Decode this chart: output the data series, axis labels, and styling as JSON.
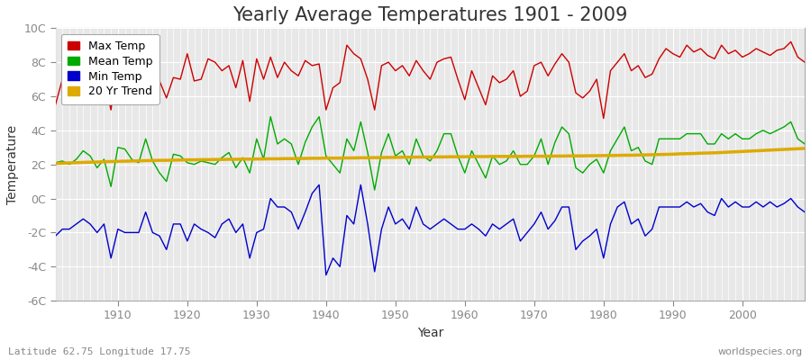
{
  "title": "Yearly Average Temperatures 1901 - 2009",
  "xlabel": "Year",
  "ylabel": "Temperature",
  "footnote_left": "Latitude 62.75 Longitude 17.75",
  "footnote_right": "worldspecies.org",
  "years": [
    1901,
    1902,
    1903,
    1904,
    1905,
    1906,
    1907,
    1908,
    1909,
    1910,
    1911,
    1912,
    1913,
    1914,
    1915,
    1916,
    1917,
    1918,
    1919,
    1920,
    1921,
    1922,
    1923,
    1924,
    1925,
    1926,
    1927,
    1928,
    1929,
    1930,
    1931,
    1932,
    1933,
    1934,
    1935,
    1936,
    1937,
    1938,
    1939,
    1940,
    1941,
    1942,
    1943,
    1944,
    1945,
    1946,
    1947,
    1948,
    1949,
    1950,
    1951,
    1952,
    1953,
    1954,
    1955,
    1956,
    1957,
    1958,
    1959,
    1960,
    1961,
    1962,
    1963,
    1964,
    1965,
    1966,
    1967,
    1968,
    1969,
    1970,
    1971,
    1972,
    1973,
    1974,
    1975,
    1976,
    1977,
    1978,
    1979,
    1980,
    1981,
    1982,
    1983,
    1984,
    1985,
    1986,
    1987,
    1988,
    1989,
    1990,
    1991,
    1992,
    1993,
    1994,
    1995,
    1996,
    1997,
    1998,
    1999,
    2000,
    2001,
    2002,
    2003,
    2004,
    2005,
    2006,
    2007,
    2008,
    2009
  ],
  "max_temp": [
    5.5,
    7.0,
    6.8,
    7.2,
    7.5,
    6.5,
    6.8,
    7.1,
    5.2,
    8.4,
    8.3,
    7.0,
    6.5,
    7.8,
    7.2,
    6.9,
    5.9,
    7.1,
    7.0,
    8.5,
    6.9,
    7.0,
    8.2,
    8.0,
    7.5,
    7.8,
    6.5,
    8.1,
    5.7,
    8.2,
    7.0,
    8.3,
    7.1,
    8.0,
    7.5,
    7.2,
    8.1,
    7.8,
    7.9,
    5.2,
    6.5,
    6.8,
    9.0,
    8.5,
    8.2,
    7.0,
    5.2,
    7.8,
    8.0,
    7.5,
    7.8,
    7.2,
    8.1,
    7.5,
    7.0,
    8.0,
    8.2,
    8.3,
    7.0,
    5.8,
    7.5,
    6.5,
    5.5,
    7.2,
    6.8,
    7.0,
    7.5,
    6.0,
    6.3,
    7.8,
    8.0,
    7.2,
    7.9,
    8.5,
    8.0,
    6.2,
    5.9,
    6.3,
    7.0,
    4.7,
    7.5,
    8.0,
    8.5,
    7.5,
    7.8,
    7.1,
    7.3,
    8.2,
    8.8,
    8.5,
    8.3,
    9.0,
    8.6,
    8.8,
    8.4,
    8.2,
    9.0,
    8.5,
    8.7,
    8.3,
    8.5,
    8.8,
    8.6,
    8.4,
    8.7,
    8.8,
    9.2,
    8.3,
    8.0
  ],
  "mean_temp": [
    2.1,
    2.2,
    2.0,
    2.3,
    2.8,
    2.5,
    1.8,
    2.3,
    0.7,
    3.0,
    2.9,
    2.3,
    2.1,
    3.5,
    2.2,
    1.5,
    1.0,
    2.6,
    2.5,
    2.1,
    2.0,
    2.2,
    2.1,
    2.0,
    2.4,
    2.7,
    1.8,
    2.4,
    1.5,
    3.5,
    2.3,
    4.8,
    3.2,
    3.5,
    3.2,
    2.0,
    3.3,
    4.2,
    4.8,
    2.5,
    2.0,
    1.5,
    3.5,
    2.8,
    4.5,
    2.7,
    0.5,
    2.7,
    3.8,
    2.5,
    2.8,
    2.0,
    3.5,
    2.5,
    2.2,
    2.8,
    3.8,
    3.8,
    2.5,
    1.5,
    2.8,
    2.0,
    1.2,
    2.5,
    2.0,
    2.2,
    2.8,
    2.0,
    2.0,
    2.5,
    3.5,
    2.0,
    3.3,
    4.2,
    3.8,
    1.8,
    1.5,
    2.0,
    2.3,
    1.5,
    2.8,
    3.5,
    4.2,
    2.8,
    3.0,
    2.2,
    2.0,
    3.5,
    3.5,
    3.5,
    3.5,
    3.8,
    3.8,
    3.8,
    3.2,
    3.2,
    3.8,
    3.5,
    3.8,
    3.5,
    3.5,
    3.8,
    4.0,
    3.8,
    4.0,
    4.2,
    4.5,
    3.5,
    3.2
  ],
  "min_temp": [
    -2.2,
    -1.8,
    -1.8,
    -1.5,
    -1.2,
    -1.5,
    -2.0,
    -1.5,
    -3.5,
    -1.8,
    -2.0,
    -2.0,
    -2.0,
    -0.8,
    -2.0,
    -2.2,
    -3.0,
    -1.5,
    -1.5,
    -2.5,
    -1.5,
    -1.8,
    -2.0,
    -2.3,
    -1.5,
    -1.2,
    -2.0,
    -1.5,
    -3.5,
    -2.0,
    -1.8,
    0.0,
    -0.5,
    -0.5,
    -0.8,
    -1.8,
    -0.8,
    0.3,
    0.8,
    -4.5,
    -3.5,
    -4.0,
    -1.0,
    -1.5,
    0.8,
    -1.5,
    -4.3,
    -1.8,
    -0.5,
    -1.5,
    -1.2,
    -1.8,
    -0.5,
    -1.5,
    -1.8,
    -1.5,
    -1.2,
    -1.5,
    -1.8,
    -1.8,
    -1.5,
    -1.8,
    -2.2,
    -1.5,
    -1.8,
    -1.5,
    -1.2,
    -2.5,
    -2.0,
    -1.5,
    -0.8,
    -1.8,
    -1.3,
    -0.5,
    -0.5,
    -3.0,
    -2.5,
    -2.2,
    -1.8,
    -3.5,
    -1.5,
    -0.5,
    -0.2,
    -1.5,
    -1.2,
    -2.2,
    -1.8,
    -0.5,
    -0.5,
    -0.5,
    -0.5,
    -0.2,
    -0.5,
    -0.3,
    -0.8,
    -1.0,
    0.0,
    -0.5,
    -0.2,
    -0.5,
    -0.5,
    -0.2,
    -0.5,
    -0.2,
    -0.5,
    -0.3,
    0.0,
    -0.5,
    -0.8
  ],
  "trend_temp": [
    2.05,
    2.07,
    2.09,
    2.1,
    2.12,
    2.13,
    2.14,
    2.16,
    2.17,
    2.18,
    2.19,
    2.2,
    2.21,
    2.22,
    2.23,
    2.24,
    2.24,
    2.25,
    2.26,
    2.27,
    2.27,
    2.28,
    2.28,
    2.29,
    2.29,
    2.3,
    2.3,
    2.31,
    2.31,
    2.32,
    2.32,
    2.33,
    2.33,
    2.34,
    2.34,
    2.35,
    2.35,
    2.36,
    2.36,
    2.37,
    2.37,
    2.37,
    2.38,
    2.38,
    2.39,
    2.39,
    2.4,
    2.4,
    2.41,
    2.41,
    2.42,
    2.42,
    2.43,
    2.43,
    2.43,
    2.44,
    2.44,
    2.45,
    2.45,
    2.45,
    2.46,
    2.46,
    2.46,
    2.47,
    2.47,
    2.47,
    2.47,
    2.47,
    2.48,
    2.48,
    2.48,
    2.48,
    2.49,
    2.49,
    2.5,
    2.5,
    2.5,
    2.51,
    2.51,
    2.52,
    2.52,
    2.53,
    2.54,
    2.54,
    2.55,
    2.56,
    2.57,
    2.58,
    2.59,
    2.6,
    2.62,
    2.63,
    2.64,
    2.66,
    2.67,
    2.68,
    2.7,
    2.72,
    2.74,
    2.76,
    2.78,
    2.8,
    2.82,
    2.84,
    2.86,
    2.88,
    2.9,
    2.92,
    2.94
  ],
  "colors": {
    "max": "#cc0000",
    "mean": "#00aa00",
    "min": "#0000cc",
    "trend": "#ddaa00",
    "plot_bg": "#e8e8e8",
    "fig_bg": "#ffffff",
    "grid": "#ffffff",
    "text": "#333333",
    "tick": "#888888"
  },
  "ylim": [
    -6,
    10
  ],
  "yticks": [
    -6,
    -4,
    -2,
    0,
    2,
    4,
    6,
    8,
    10
  ],
  "ytick_labels": [
    "-6C",
    "-4C",
    "-2C",
    "0C",
    "2C",
    "4C",
    "6C",
    "8C",
    "10C"
  ],
  "xlim": [
    1901,
    2009
  ],
  "legend_labels": [
    "Max Temp",
    "Mean Temp",
    "Min Temp",
    "20 Yr Trend"
  ],
  "legend_colors": [
    "#cc0000",
    "#00aa00",
    "#0000cc",
    "#ddaa00"
  ],
  "title_fontsize": 15,
  "axis_fontsize": 9,
  "legend_fontsize": 9
}
